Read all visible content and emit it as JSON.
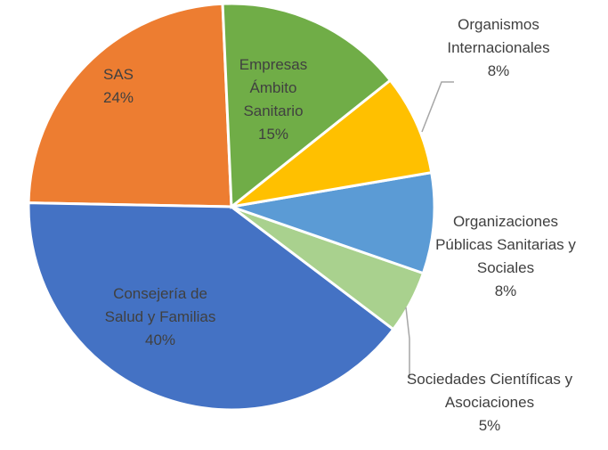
{
  "chart_data": {
    "type": "pie",
    "categories": [
      "Empresas Ámbito Sanitario",
      "Organismos Internacionales",
      "Organizaciones Públicas Sanitarias y Sociales",
      "Sociedades Científicas y Asociaciones",
      "Consejería de Salud y Familias",
      "SAS"
    ],
    "values": [
      15,
      8,
      8,
      5,
      40,
      24
    ],
    "value_labels": [
      "15%",
      "8%",
      "8%",
      "5%",
      "40%",
      "24%"
    ],
    "colors": [
      "#70ad47",
      "#ffc000",
      "#5b9bd5",
      "#a9d18e",
      "#4472c4",
      "#ed7d31"
    ]
  }
}
